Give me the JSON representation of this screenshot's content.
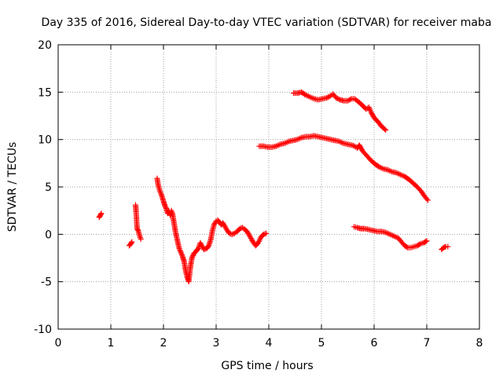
{
  "chart_data": {
    "type": "scatter",
    "title": "Day 335 of 2016, Sidereal Day-to-day VTEC variation (SDTVAR) for receiver maba",
    "xlabel": "GPS time / hours",
    "ylabel": "SDTVAR / TECUs",
    "xlim": [
      0,
      8
    ],
    "ylim": [
      -10,
      20
    ],
    "xticks": [
      0,
      1,
      2,
      3,
      4,
      5,
      6,
      7,
      8
    ],
    "yticks": [
      -10,
      -5,
      0,
      5,
      10,
      15,
      20
    ],
    "xtick_labels": [
      "0",
      "1",
      "2",
      "3",
      "4",
      "5",
      "6",
      "7",
      "8"
    ],
    "ytick_labels": [
      "-10",
      "-5",
      "0",
      "5",
      "10",
      "15",
      "20"
    ],
    "grid": true,
    "marker": "+",
    "color": "#ff0000",
    "segments": [
      [
        [
          0.78,
          1.8
        ],
        [
          0.8,
          2.0
        ],
        [
          0.82,
          2.2
        ]
      ],
      [
        [
          1.35,
          -1.2
        ],
        [
          1.38,
          -1.0
        ],
        [
          1.4,
          -0.8
        ]
      ],
      [
        [
          1.47,
          3.1
        ],
        [
          1.48,
          2.4
        ],
        [
          1.5,
          0.6
        ],
        [
          1.52,
          0.4
        ],
        [
          1.55,
          -0.2
        ],
        [
          1.57,
          -0.5
        ]
      ],
      [
        [
          1.88,
          5.9
        ],
        [
          1.9,
          5.2
        ],
        [
          1.93,
          4.6
        ],
        [
          1.96,
          4.2
        ],
        [
          2.0,
          3.5
        ],
        [
          2.03,
          3.0
        ],
        [
          2.06,
          2.6
        ],
        [
          2.08,
          2.2
        ],
        [
          2.1,
          2.5
        ],
        [
          2.13,
          2.0
        ],
        [
          2.15,
          2.5
        ],
        [
          2.17,
          2.2
        ],
        [
          2.2,
          1.2
        ],
        [
          2.23,
          0.2
        ],
        [
          2.27,
          -0.8
        ],
        [
          2.3,
          -1.5
        ],
        [
          2.33,
          -1.9
        ],
        [
          2.36,
          -2.3
        ],
        [
          2.39,
          -2.8
        ],
        [
          2.42,
          -3.8
        ],
        [
          2.45,
          -4.5
        ],
        [
          2.48,
          -5.0
        ],
        [
          2.51,
          -3.5
        ],
        [
          2.54,
          -2.5
        ],
        [
          2.58,
          -2.0
        ],
        [
          2.62,
          -1.8
        ],
        [
          2.66,
          -1.5
        ],
        [
          2.7,
          -0.9
        ],
        [
          2.73,
          -1.2
        ],
        [
          2.77,
          -1.6
        ],
        [
          2.82,
          -1.5
        ],
        [
          2.86,
          -1.2
        ],
        [
          2.9,
          -0.5
        ],
        [
          2.93,
          0.4
        ],
        [
          2.96,
          1.0
        ],
        [
          3.0,
          1.4
        ],
        [
          3.03,
          1.5
        ],
        [
          3.06,
          1.3
        ],
        [
          3.1,
          1.0
        ],
        [
          3.13,
          1.2
        ],
        [
          3.16,
          0.9
        ],
        [
          3.2,
          0.5
        ],
        [
          3.25,
          0.1
        ],
        [
          3.3,
          0.0
        ],
        [
          3.35,
          0.1
        ],
        [
          3.4,
          0.3
        ],
        [
          3.45,
          0.6
        ],
        [
          3.5,
          0.7
        ],
        [
          3.55,
          0.5
        ],
        [
          3.6,
          0.2
        ],
        [
          3.65,
          -0.3
        ],
        [
          3.7,
          -0.8
        ],
        [
          3.75,
          -1.2
        ],
        [
          3.8,
          -0.9
        ],
        [
          3.85,
          -0.3
        ],
        [
          3.9,
          0.0
        ],
        [
          3.95,
          0.1
        ]
      ]
    ],
    "upper_segments": [
      [
        [
          4.47,
          14.9
        ],
        [
          4.55,
          14.9
        ],
        [
          4.62,
          15.0
        ],
        [
          4.7,
          14.7
        ],
        [
          4.78,
          14.5
        ],
        [
          4.86,
          14.3
        ],
        [
          4.94,
          14.2
        ],
        [
          5.02,
          14.3
        ],
        [
          5.1,
          14.4
        ],
        [
          5.17,
          14.6
        ],
        [
          5.22,
          14.8
        ],
        [
          5.28,
          14.4
        ],
        [
          5.35,
          14.2
        ],
        [
          5.42,
          14.1
        ],
        [
          5.5,
          14.1
        ],
        [
          5.57,
          14.3
        ],
        [
          5.63,
          14.3
        ],
        [
          5.7,
          14.0
        ],
        [
          5.78,
          13.6
        ],
        [
          5.85,
          13.2
        ],
        [
          5.9,
          13.4
        ],
        [
          5.95,
          12.8
        ],
        [
          6.0,
          12.3
        ],
        [
          6.07,
          11.9
        ],
        [
          6.14,
          11.4
        ],
        [
          6.22,
          11.0
        ]
      ]
    ],
    "middle_segments": [
      [
        [
          3.82,
          9.3
        ],
        [
          3.9,
          9.3
        ],
        [
          3.98,
          9.2
        ],
        [
          4.06,
          9.2
        ],
        [
          4.14,
          9.3
        ],
        [
          4.22,
          9.5
        ],
        [
          4.3,
          9.6
        ],
        [
          4.38,
          9.8
        ],
        [
          4.46,
          9.9
        ],
        [
          4.54,
          10.0
        ],
        [
          4.62,
          10.2
        ],
        [
          4.7,
          10.3
        ],
        [
          4.78,
          10.3
        ],
        [
          4.86,
          10.4
        ],
        [
          4.94,
          10.3
        ],
        [
          5.02,
          10.2
        ],
        [
          5.1,
          10.1
        ],
        [
          5.18,
          10.0
        ],
        [
          5.26,
          9.9
        ],
        [
          5.34,
          9.8
        ],
        [
          5.42,
          9.6
        ],
        [
          5.5,
          9.5
        ],
        [
          5.58,
          9.4
        ],
        [
          5.63,
          9.3
        ],
        [
          5.68,
          9.1
        ],
        [
          5.72,
          9.4
        ],
        [
          5.78,
          8.8
        ],
        [
          5.86,
          8.3
        ],
        [
          5.94,
          7.8
        ],
        [
          6.02,
          7.4
        ],
        [
          6.1,
          7.1
        ],
        [
          6.18,
          6.9
        ],
        [
          6.26,
          6.8
        ],
        [
          6.34,
          6.6
        ],
        [
          6.42,
          6.5
        ],
        [
          6.5,
          6.3
        ],
        [
          6.58,
          6.1
        ],
        [
          6.66,
          5.8
        ],
        [
          6.74,
          5.4
        ],
        [
          6.82,
          5.0
        ],
        [
          6.9,
          4.5
        ],
        [
          6.96,
          4.0
        ],
        [
          7.02,
          3.6
        ]
      ]
    ],
    "lower_segments": [
      [
        [
          5.62,
          0.8
        ],
        [
          5.68,
          0.7
        ],
        [
          5.75,
          0.6
        ],
        [
          5.82,
          0.6
        ],
        [
          5.9,
          0.5
        ],
        [
          5.98,
          0.4
        ],
        [
          6.06,
          0.3
        ],
        [
          6.14,
          0.3
        ],
        [
          6.22,
          0.2
        ],
        [
          6.3,
          0.0
        ],
        [
          6.38,
          -0.2
        ],
        [
          6.46,
          -0.4
        ],
        [
          6.52,
          -0.8
        ],
        [
          6.58,
          -1.2
        ],
        [
          6.64,
          -1.4
        ],
        [
          6.7,
          -1.4
        ],
        [
          6.76,
          -1.3
        ],
        [
          6.82,
          -1.2
        ],
        [
          6.88,
          -1.0
        ],
        [
          6.94,
          -0.9
        ],
        [
          7.0,
          -0.7
        ]
      ],
      [
        [
          7.28,
          -1.6
        ],
        [
          7.32,
          -1.4
        ],
        [
          7.36,
          -1.3
        ],
        [
          7.4,
          -1.3
        ]
      ]
    ]
  }
}
